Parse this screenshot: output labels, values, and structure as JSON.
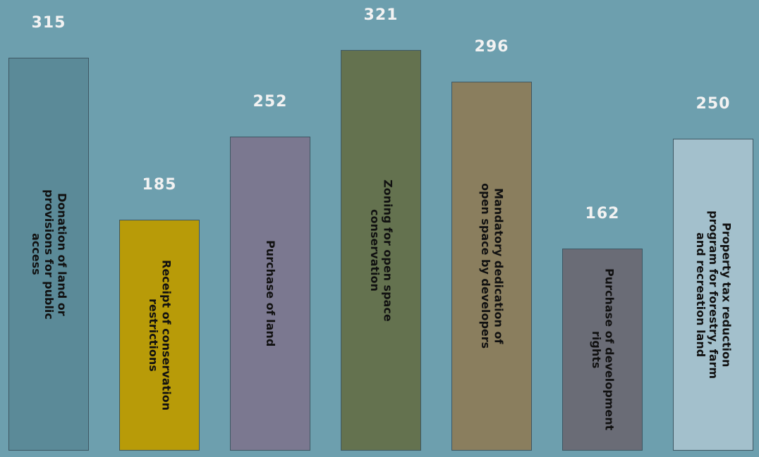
{
  "chart_data": {
    "type": "bar",
    "categories": [
      "Donation of land or provisions for public access",
      "Receipt of conservation restrictions",
      "Purchase of land",
      "Zoning for open space conservation",
      "Mandatory dedication of open space by developers",
      "Purchase of development rights",
      "Property tax reduction program for forestry, farm and recreation land"
    ],
    "values": [
      315,
      185,
      252,
      321,
      296,
      162,
      250
    ],
    "colors": [
      "#5b8a98",
      "#b89b08",
      "#7b7890",
      "#64724f",
      "#8a7e5e",
      "#6a6c76",
      "#a3c0cc"
    ]
  }
}
